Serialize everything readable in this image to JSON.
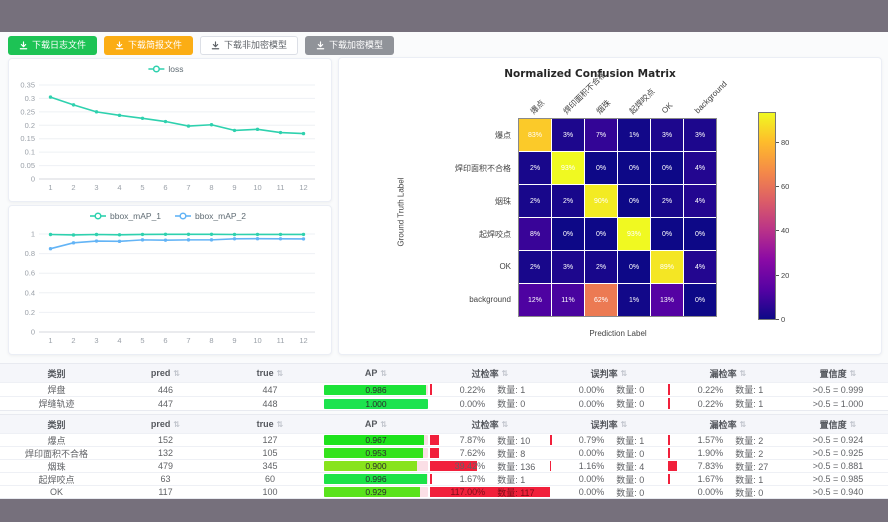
{
  "colors": {
    "frame": "#76707c",
    "page_bg": "#fafbfc",
    "button_green": "#1dc355",
    "button_orange": "#fbad14",
    "button_gray": "#909399",
    "series_teal": "#2ed1ae",
    "series_blue": "#63b4f6",
    "ap_bar_green": "#35e055",
    "rate_bar_red": "#f1203b"
  },
  "toolbar": {
    "buttons": [
      {
        "label": "下载日志文件",
        "style": "green",
        "icon": "download-icon"
      },
      {
        "label": "下载简报文件",
        "style": "orange",
        "icon": "download-icon"
      },
      {
        "label": "下载非加密模型",
        "style": "plain",
        "icon": "download-icon"
      },
      {
        "label": "下载加密模型",
        "style": "gray",
        "icon": "download-icon"
      }
    ]
  },
  "chart_data": [
    {
      "type": "line",
      "title": "loss",
      "legend": [
        "loss"
      ],
      "legend_position": "top",
      "x": [
        1,
        2,
        3,
        4,
        5,
        6,
        7,
        8,
        9,
        10,
        11,
        12
      ],
      "series": [
        {
          "name": "loss",
          "color": "#2ed1ae",
          "values": [
            0.305,
            0.276,
            0.25,
            0.237,
            0.226,
            0.214,
            0.197,
            0.202,
            0.181,
            0.185,
            0.173,
            0.169
          ]
        }
      ],
      "ylim": [
        0,
        0.35
      ],
      "yticks": [
        0,
        0.05,
        0.1,
        0.15,
        0.2,
        0.25,
        0.3,
        0.35
      ],
      "grid": true
    },
    {
      "type": "line",
      "title": "bbox_mAP",
      "legend": [
        "bbox_mAP_1",
        "bbox_mAP_2"
      ],
      "legend_position": "top",
      "x": [
        1,
        2,
        3,
        4,
        5,
        6,
        7,
        8,
        9,
        10,
        11,
        12
      ],
      "series": [
        {
          "name": "bbox_mAP_1",
          "color": "#2ed1ae",
          "values": [
            0.995,
            0.99,
            0.995,
            0.992,
            0.996,
            0.997,
            0.997,
            0.997,
            0.995,
            0.996,
            0.996,
            0.996
          ]
        },
        {
          "name": "bbox_mAP_2",
          "color": "#63b4f6",
          "values": [
            0.85,
            0.91,
            0.928,
            0.925,
            0.94,
            0.937,
            0.94,
            0.94,
            0.951,
            0.952,
            0.951,
            0.95
          ]
        }
      ],
      "ylim": [
        0,
        1
      ],
      "yticks": [
        0,
        0.2,
        0.4,
        0.6,
        0.8,
        1
      ],
      "grid": true
    },
    {
      "type": "heatmap",
      "title": "Normalized Confusion Matrix",
      "xlabel": "Prediction Label",
      "ylabel": "Ground Truth Label",
      "labels": [
        "爆点",
        "焊印面积不合格",
        "烟珠",
        "起焊咬点",
        "OK",
        "background"
      ],
      "unit": "%",
      "matrix": [
        [
          83,
          3,
          7,
          1,
          3,
          3
        ],
        [
          2,
          93,
          0,
          0,
          0,
          4
        ],
        [
          2,
          2,
          90,
          0,
          2,
          4
        ],
        [
          8,
          0,
          0,
          93,
          0,
          0
        ],
        [
          2,
          3,
          2,
          0,
          89,
          4
        ],
        [
          12,
          11,
          62,
          1,
          13,
          0
        ]
      ],
      "vmin": 0,
      "vmax": 93,
      "colormap": "plasma",
      "colorbar_ticks": [
        0,
        20,
        40,
        60,
        80
      ]
    }
  ],
  "tables": {
    "count_label": "数量",
    "headers": [
      {
        "key": "name",
        "label": "类别",
        "sortable": false
      },
      {
        "key": "pred",
        "label": "pred",
        "sortable": true
      },
      {
        "key": "true",
        "label": "true",
        "sortable": true
      },
      {
        "key": "ap",
        "label": "AP",
        "sortable": true
      },
      {
        "key": "over",
        "label": "过检率",
        "sortable": true
      },
      {
        "key": "mis",
        "label": "误判率",
        "sortable": true
      },
      {
        "key": "miss",
        "label": "漏检率",
        "sortable": true
      },
      {
        "key": "conf",
        "label": "置信度",
        "sortable": true
      }
    ],
    "groups": [
      {
        "rows": [
          {
            "name": "焊盘",
            "pred": 446,
            "true": 447,
            "ap": "0.986",
            "over": "0.22%",
            "over_n": 1,
            "mis": "0.00%",
            "mis_n": 0,
            "miss": "0.22%",
            "miss_n": 1,
            "conf": ">0.5 = 0.999"
          },
          {
            "name": "焊缝轨迹",
            "pred": 447,
            "true": 448,
            "ap": "1.000",
            "over": "0.00%",
            "over_n": 0,
            "mis": "0.00%",
            "mis_n": 0,
            "miss": "0.22%",
            "miss_n": 1,
            "conf": ">0.5 = 1.000"
          }
        ]
      },
      {
        "rows": [
          {
            "name": "爆点",
            "pred": 152,
            "true": 127,
            "ap": "0.967",
            "over": "7.87%",
            "over_n": 10,
            "mis": "0.79%",
            "mis_n": 1,
            "miss": "1.57%",
            "miss_n": 2,
            "conf": ">0.5 = 0.924"
          },
          {
            "name": "焊印面积不合格",
            "pred": 132,
            "true": 105,
            "ap": "0.953",
            "over": "7.62%",
            "over_n": 8,
            "mis": "0.00%",
            "mis_n": 0,
            "miss": "1.90%",
            "miss_n": 2,
            "conf": ">0.5 = 0.925"
          },
          {
            "name": "烟珠",
            "pred": 479,
            "true": 345,
            "ap": "0.900",
            "over": "39.42%",
            "over_n": 136,
            "mis": "1.16%",
            "mis_n": 4,
            "miss": "7.83%",
            "miss_n": 27,
            "conf": ">0.5 = 0.881"
          },
          {
            "name": "起焊咬点",
            "pred": 63,
            "true": 60,
            "ap": "0.996",
            "over": "1.67%",
            "over_n": 1,
            "mis": "0.00%",
            "mis_n": 0,
            "miss": "1.67%",
            "miss_n": 1,
            "conf": ">0.5 = 0.985"
          },
          {
            "name": "OK",
            "pred": 117,
            "true": 100,
            "ap": "0.929",
            "over": "117.00%",
            "over_n": 117,
            "mis": "0.00%",
            "mis_n": 0,
            "miss": "0.00%",
            "miss_n": 0,
            "conf": ">0.5 = 0.940"
          }
        ]
      }
    ]
  }
}
